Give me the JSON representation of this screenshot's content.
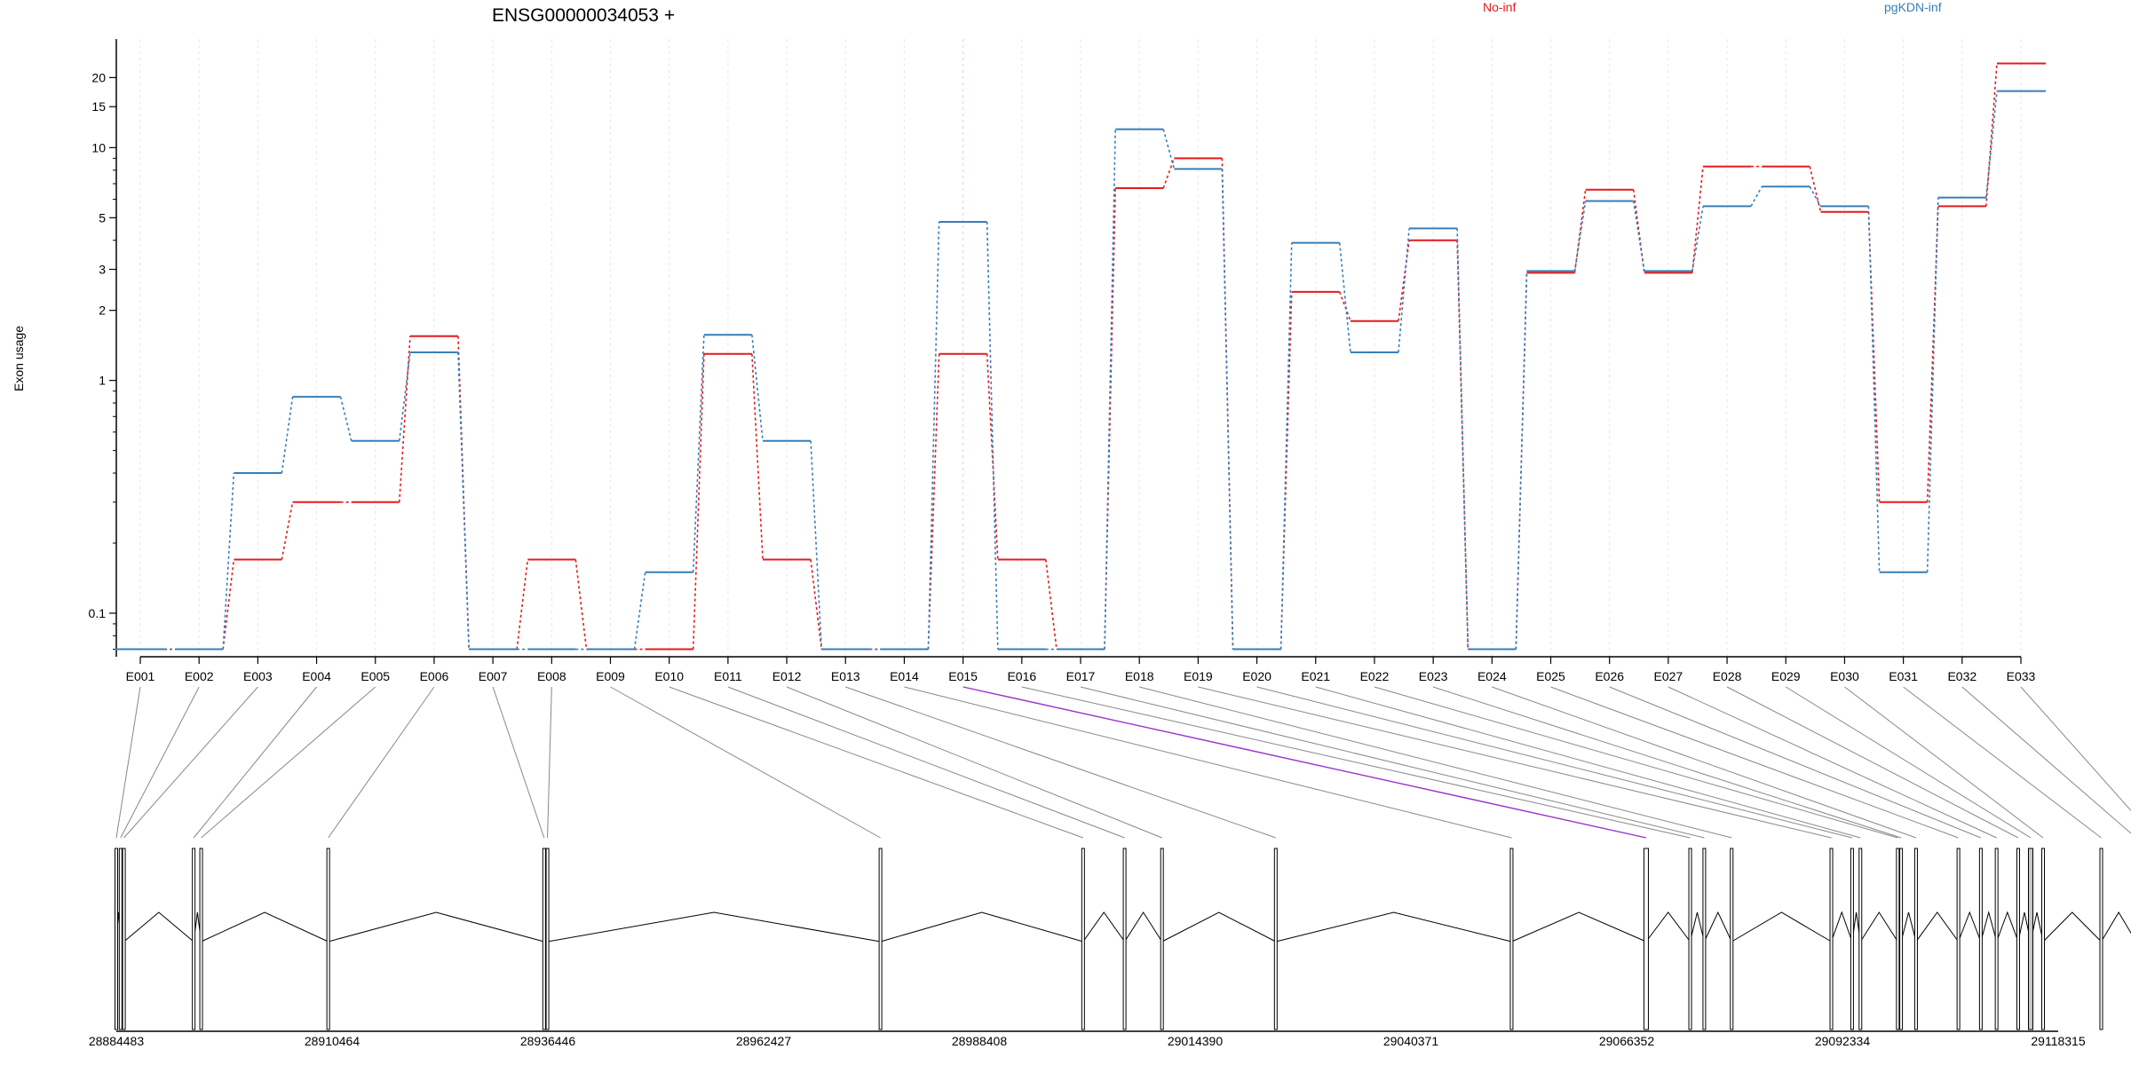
{
  "chart_data": {
    "type": "line",
    "title": "ENSG00000034053 +",
    "ylabel": "Exon usage",
    "y_scale": "log",
    "ylim": [
      0.065,
      25
    ],
    "y_ticks": [
      0.1,
      1,
      2,
      3,
      5,
      10,
      15,
      20
    ],
    "grid": "vertical dotted per exon",
    "legend_placement": "top",
    "categories": [
      "E001",
      "E002",
      "E003",
      "E004",
      "E005",
      "E006",
      "E007",
      "E008",
      "E009",
      "E010",
      "E011",
      "E012",
      "E013",
      "E014",
      "E015",
      "E016",
      "E017",
      "E018",
      "E019",
      "E020",
      "E021",
      "E022",
      "E023",
      "E024",
      "E025",
      "E026",
      "E027",
      "E028",
      "E029",
      "E030",
      "E031",
      "E032",
      "E033"
    ],
    "series": [
      {
        "name": "No-inf",
        "color": "#e41a1c",
        "values": [
          0.07,
          0.07,
          0.17,
          0.3,
          0.3,
          1.55,
          0.07,
          0.17,
          0.07,
          0.07,
          1.3,
          0.17,
          0.07,
          0.07,
          1.3,
          0.17,
          0.07,
          6.7,
          9.0,
          0.07,
          2.4,
          1.8,
          4.0,
          0.07,
          2.9,
          6.6,
          2.9,
          8.3,
          8.3,
          5.3,
          0.3,
          5.6,
          23.0
        ]
      },
      {
        "name": "pgKDN-inf",
        "color": "#377eb8",
        "values": [
          0.07,
          0.07,
          0.4,
          0.85,
          0.55,
          1.32,
          0.07,
          0.07,
          0.07,
          0.15,
          1.57,
          0.55,
          0.07,
          0.07,
          4.8,
          0.07,
          0.07,
          12.0,
          8.1,
          0.07,
          3.9,
          1.32,
          4.5,
          0.07,
          2.95,
          5.9,
          2.95,
          5.6,
          6.8,
          5.6,
          0.15,
          6.1,
          17.5
        ]
      }
    ],
    "genomic_axis": {
      "ticks": [
        "28884483",
        "28910464",
        "28936446",
        "28962427",
        "28988408",
        "29014390",
        "29040371",
        "29066352",
        "29092334",
        "29118315"
      ],
      "range": [
        28884483,
        29118315
      ],
      "exon_positions": [
        28884483,
        28885000,
        28885400,
        28893800,
        28894700,
        28910000,
        28936000,
        28936400,
        28976500,
        29000900,
        29005900,
        29010400,
        29024100,
        29052500,
        29068700,
        29074000,
        29075700,
        29079000,
        29091000,
        29093500,
        29094500,
        29099000,
        29099400,
        29101200,
        29106300,
        29109000,
        29110900,
        29113500,
        29115000,
        29116500,
        29123500,
        29127700,
        29130000
      ]
    },
    "highlighted_exon": "E015"
  }
}
